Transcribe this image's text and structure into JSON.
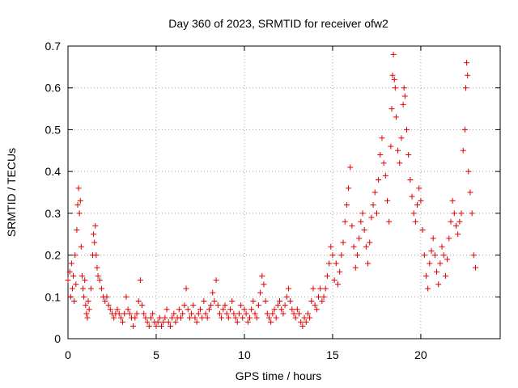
{
  "chart_data": {
    "type": "scatter",
    "title": "Day 360 of 2023, SRMTID for receiver ofw2",
    "xlabel": "GPS time / hours",
    "ylabel": "SRMTID / TECUs",
    "xlim": [
      0,
      24.5
    ],
    "ylim": [
      0,
      0.7
    ],
    "x_ticks": [
      0,
      5,
      10,
      15,
      20
    ],
    "x_tick_labels": [
      "0",
      "5",
      "10",
      "15",
      "20"
    ],
    "y_ticks": [
      0,
      0.1,
      0.2,
      0.3,
      0.4,
      0.5,
      0.6,
      0.7
    ],
    "y_tick_labels": [
      "0",
      "0.1",
      "0.2",
      "0.3",
      "0.4",
      "0.5",
      "0.6",
      "0.7"
    ],
    "grid": true,
    "marker": "+",
    "color": "#e00000",
    "series": [
      {
        "name": "SRMTID",
        "points": [
          [
            0.0,
            0.14
          ],
          [
            0.1,
            0.16
          ],
          [
            0.15,
            0.1
          ],
          [
            0.2,
            0.18
          ],
          [
            0.25,
            0.12
          ],
          [
            0.3,
            0.15
          ],
          [
            0.35,
            0.09
          ],
          [
            0.4,
            0.2
          ],
          [
            0.45,
            0.13
          ],
          [
            0.5,
            0.26
          ],
          [
            0.55,
            0.32
          ],
          [
            0.6,
            0.36
          ],
          [
            0.65,
            0.3
          ],
          [
            0.7,
            0.33
          ],
          [
            0.75,
            0.22
          ],
          [
            0.8,
            0.15
          ],
          [
            0.85,
            0.12
          ],
          [
            0.9,
            0.1
          ],
          [
            0.95,
            0.14
          ],
          [
            1.0,
            0.08
          ],
          [
            1.05,
            0.06
          ],
          [
            1.1,
            0.05
          ],
          [
            1.15,
            0.09
          ],
          [
            1.2,
            0.07
          ],
          [
            1.3,
            0.12
          ],
          [
            1.4,
            0.2
          ],
          [
            1.45,
            0.25
          ],
          [
            1.5,
            0.23
          ],
          [
            1.55,
            0.27
          ],
          [
            1.6,
            0.2
          ],
          [
            1.65,
            0.17
          ],
          [
            1.7,
            0.15
          ],
          [
            1.8,
            0.14
          ],
          [
            1.9,
            0.12
          ],
          [
            2.0,
            0.1
          ],
          [
            2.1,
            0.09
          ],
          [
            2.2,
            0.1
          ],
          [
            2.3,
            0.08
          ],
          [
            2.4,
            0.07
          ],
          [
            2.5,
            0.06
          ],
          [
            2.6,
            0.05
          ],
          [
            2.7,
            0.06
          ],
          [
            2.8,
            0.07
          ],
          [
            2.9,
            0.06
          ],
          [
            3.0,
            0.05
          ],
          [
            3.1,
            0.04
          ],
          [
            3.2,
            0.06
          ],
          [
            3.3,
            0.1
          ],
          [
            3.4,
            0.07
          ],
          [
            3.5,
            0.06
          ],
          [
            3.6,
            0.05
          ],
          [
            3.7,
            0.03
          ],
          [
            3.8,
            0.05
          ],
          [
            3.9,
            0.06
          ],
          [
            4.0,
            0.09
          ],
          [
            4.1,
            0.14
          ],
          [
            4.2,
            0.08
          ],
          [
            4.3,
            0.06
          ],
          [
            4.4,
            0.05
          ],
          [
            4.5,
            0.04
          ],
          [
            4.6,
            0.03
          ],
          [
            4.7,
            0.05
          ],
          [
            4.8,
            0.06
          ],
          [
            4.9,
            0.04
          ],
          [
            5.0,
            0.03
          ],
          [
            5.1,
            0.04
          ],
          [
            5.2,
            0.05
          ],
          [
            5.3,
            0.03
          ],
          [
            5.4,
            0.04
          ],
          [
            5.5,
            0.05
          ],
          [
            5.6,
            0.07
          ],
          [
            5.7,
            0.04
          ],
          [
            5.8,
            0.03
          ],
          [
            5.9,
            0.05
          ],
          [
            6.0,
            0.06
          ],
          [
            6.1,
            0.04
          ],
          [
            6.2,
            0.05
          ],
          [
            6.3,
            0.07
          ],
          [
            6.4,
            0.05
          ],
          [
            6.5,
            0.06
          ],
          [
            6.6,
            0.08
          ],
          [
            6.7,
            0.12
          ],
          [
            6.8,
            0.07
          ],
          [
            6.9,
            0.05
          ],
          [
            7.0,
            0.06
          ],
          [
            7.1,
            0.08
          ],
          [
            7.2,
            0.05
          ],
          [
            7.3,
            0.04
          ],
          [
            7.4,
            0.06
          ],
          [
            7.5,
            0.07
          ],
          [
            7.6,
            0.05
          ],
          [
            7.7,
            0.09
          ],
          [
            7.8,
            0.06
          ],
          [
            7.9,
            0.05
          ],
          [
            8.0,
            0.07
          ],
          [
            8.1,
            0.08
          ],
          [
            8.2,
            0.11
          ],
          [
            8.3,
            0.09
          ],
          [
            8.4,
            0.14
          ],
          [
            8.5,
            0.08
          ],
          [
            8.6,
            0.06
          ],
          [
            8.7,
            0.05
          ],
          [
            8.8,
            0.07
          ],
          [
            8.9,
            0.08
          ],
          [
            9.0,
            0.06
          ],
          [
            9.1,
            0.05
          ],
          [
            9.2,
            0.07
          ],
          [
            9.3,
            0.09
          ],
          [
            9.4,
            0.06
          ],
          [
            9.5,
            0.05
          ],
          [
            9.6,
            0.04
          ],
          [
            9.7,
            0.06
          ],
          [
            9.8,
            0.08
          ],
          [
            9.9,
            0.05
          ],
          [
            10.0,
            0.07
          ],
          [
            10.1,
            0.06
          ],
          [
            10.2,
            0.04
          ],
          [
            10.3,
            0.05
          ],
          [
            10.4,
            0.07
          ],
          [
            10.5,
            0.09
          ],
          [
            10.6,
            0.06
          ],
          [
            10.7,
            0.05
          ],
          [
            10.8,
            0.08
          ],
          [
            10.9,
            0.11
          ],
          [
            11.0,
            0.15
          ],
          [
            11.1,
            0.13
          ],
          [
            11.2,
            0.09
          ],
          [
            11.3,
            0.06
          ],
          [
            11.4,
            0.05
          ],
          [
            11.5,
            0.04
          ],
          [
            11.6,
            0.06
          ],
          [
            11.7,
            0.07
          ],
          [
            11.8,
            0.05
          ],
          [
            11.9,
            0.08
          ],
          [
            12.0,
            0.09
          ],
          [
            12.1,
            0.07
          ],
          [
            12.2,
            0.06
          ],
          [
            12.3,
            0.08
          ],
          [
            12.4,
            0.1
          ],
          [
            12.5,
            0.12
          ],
          [
            12.6,
            0.09
          ],
          [
            12.7,
            0.07
          ],
          [
            12.8,
            0.06
          ],
          [
            12.9,
            0.05
          ],
          [
            13.0,
            0.07
          ],
          [
            13.1,
            0.06
          ],
          [
            13.2,
            0.04
          ],
          [
            13.3,
            0.03
          ],
          [
            13.4,
            0.05
          ],
          [
            13.5,
            0.04
          ],
          [
            13.6,
            0.06
          ],
          [
            13.7,
            0.05
          ],
          [
            13.8,
            0.09
          ],
          [
            13.9,
            0.12
          ],
          [
            14.0,
            0.08
          ],
          [
            14.1,
            0.07
          ],
          [
            14.2,
            0.1
          ],
          [
            14.3,
            0.12
          ],
          [
            14.4,
            0.09
          ],
          [
            14.5,
            0.1
          ],
          [
            14.6,
            0.12
          ],
          [
            14.7,
            0.15
          ],
          [
            14.8,
            0.18
          ],
          [
            14.9,
            0.22
          ],
          [
            15.0,
            0.2
          ],
          [
            15.1,
            0.14
          ],
          [
            15.2,
            0.18
          ],
          [
            15.3,
            0.13
          ],
          [
            15.4,
            0.16
          ],
          [
            15.5,
            0.2
          ],
          [
            15.6,
            0.23
          ],
          [
            15.7,
            0.28
          ],
          [
            15.8,
            0.32
          ],
          [
            15.9,
            0.36
          ],
          [
            16.0,
            0.41
          ],
          [
            16.1,
            0.27
          ],
          [
            16.2,
            0.22
          ],
          [
            16.3,
            0.17
          ],
          [
            16.4,
            0.2
          ],
          [
            16.5,
            0.24
          ],
          [
            16.6,
            0.28
          ],
          [
            16.7,
            0.3
          ],
          [
            16.8,
            0.26
          ],
          [
            16.9,
            0.22
          ],
          [
            17.0,
            0.18
          ],
          [
            17.1,
            0.23
          ],
          [
            17.2,
            0.29
          ],
          [
            17.3,
            0.32
          ],
          [
            17.4,
            0.35
          ],
          [
            17.5,
            0.3
          ],
          [
            17.6,
            0.38
          ],
          [
            17.7,
            0.44
          ],
          [
            17.8,
            0.48
          ],
          [
            17.9,
            0.42
          ],
          [
            18.0,
            0.39
          ],
          [
            18.1,
            0.33
          ],
          [
            18.2,
            0.28
          ],
          [
            18.3,
            0.46
          ],
          [
            18.35,
            0.55
          ],
          [
            18.4,
            0.63
          ],
          [
            18.45,
            0.68
          ],
          [
            18.5,
            0.62
          ],
          [
            18.55,
            0.6
          ],
          [
            18.6,
            0.53
          ],
          [
            18.7,
            0.45
          ],
          [
            18.8,
            0.42
          ],
          [
            18.9,
            0.48
          ],
          [
            19.0,
            0.56
          ],
          [
            19.05,
            0.6
          ],
          [
            19.1,
            0.58
          ],
          [
            19.2,
            0.5
          ],
          [
            19.3,
            0.44
          ],
          [
            19.4,
            0.38
          ],
          [
            19.5,
            0.34
          ],
          [
            19.6,
            0.3
          ],
          [
            19.7,
            0.28
          ],
          [
            19.8,
            0.32
          ],
          [
            19.9,
            0.36
          ],
          [
            20.0,
            0.33
          ],
          [
            20.1,
            0.26
          ],
          [
            20.2,
            0.2
          ],
          [
            20.3,
            0.15
          ],
          [
            20.4,
            0.12
          ],
          [
            20.5,
            0.18
          ],
          [
            20.6,
            0.21
          ],
          [
            20.7,
            0.24
          ],
          [
            20.8,
            0.2
          ],
          [
            20.9,
            0.16
          ],
          [
            21.0,
            0.13
          ],
          [
            21.1,
            0.18
          ],
          [
            21.2,
            0.22
          ],
          [
            21.3,
            0.2
          ],
          [
            21.4,
            0.15
          ],
          [
            21.5,
            0.19
          ],
          [
            21.6,
            0.24
          ],
          [
            21.7,
            0.28
          ],
          [
            21.8,
            0.33
          ],
          [
            21.9,
            0.3
          ],
          [
            22.0,
            0.27
          ],
          [
            22.1,
            0.25
          ],
          [
            22.2,
            0.28
          ],
          [
            22.3,
            0.3
          ],
          [
            22.4,
            0.45
          ],
          [
            22.5,
            0.5
          ],
          [
            22.55,
            0.6
          ],
          [
            22.6,
            0.66
          ],
          [
            22.65,
            0.63
          ],
          [
            22.7,
            0.4
          ],
          [
            22.8,
            0.35
          ],
          [
            22.9,
            0.3
          ],
          [
            23.0,
            0.2
          ],
          [
            23.1,
            0.17
          ]
        ]
      }
    ]
  }
}
